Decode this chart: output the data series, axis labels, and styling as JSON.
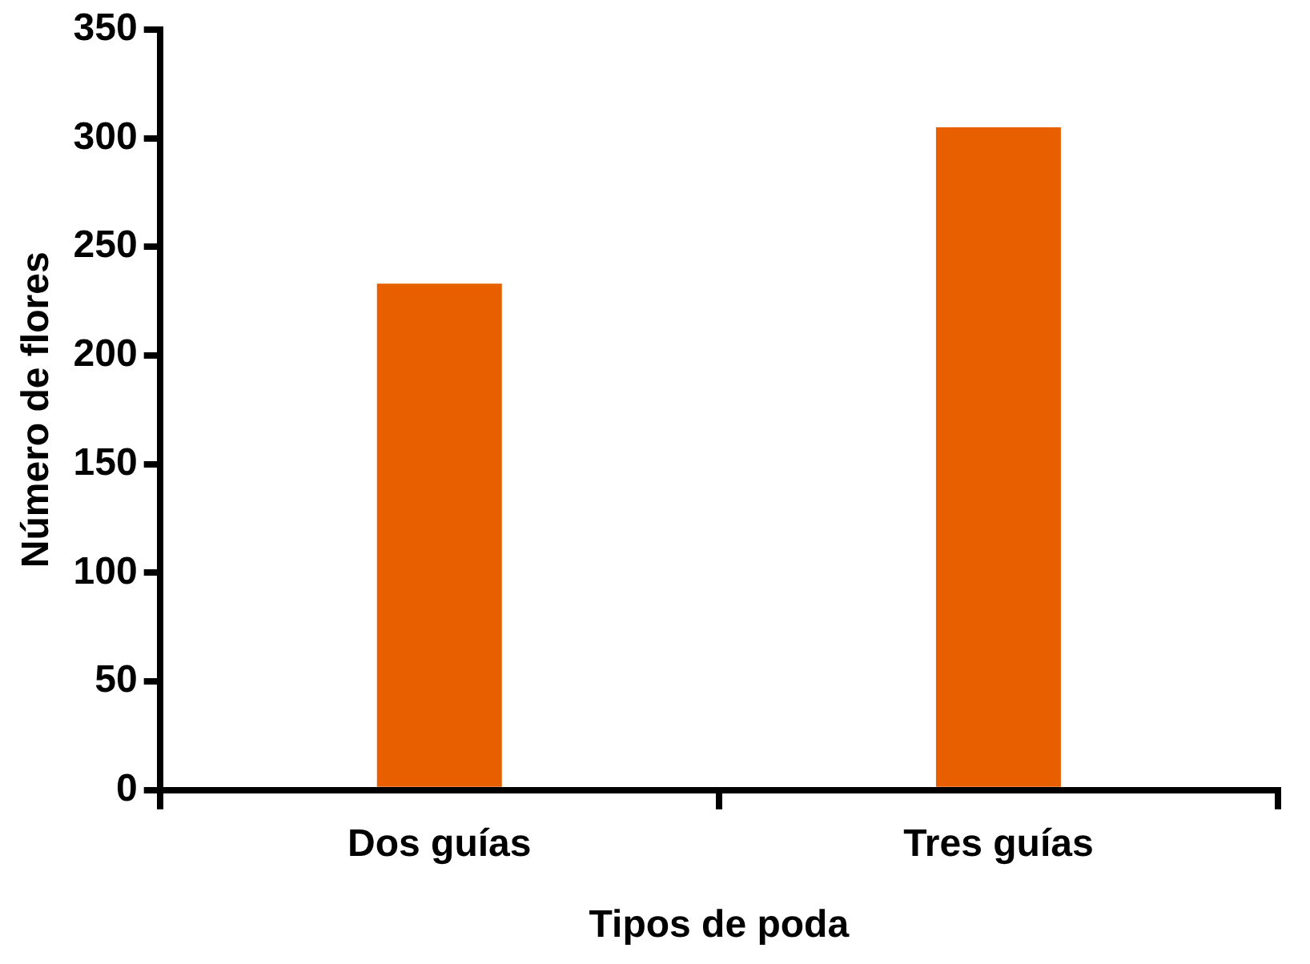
{
  "chart_data": {
    "type": "bar",
    "xlabel": "Tipos de poda",
    "ylabel": "Número de flores",
    "categories": [
      "Dos guías",
      "Tres guías"
    ],
    "values": [
      233,
      305
    ],
    "color": "#e85f00",
    "ylim": [
      0,
      350
    ],
    "yticks": [
      0,
      50,
      100,
      150,
      200,
      250,
      300,
      350
    ],
    "grid": false,
    "legend": false
  }
}
